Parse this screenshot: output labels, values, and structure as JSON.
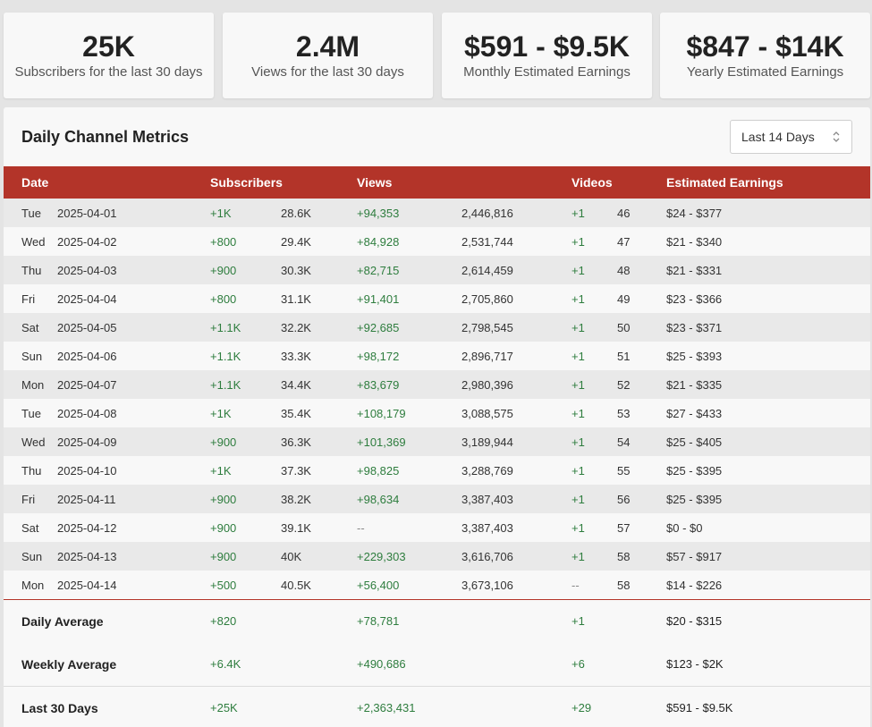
{
  "stats": [
    {
      "value": "25K",
      "label": "Subscribers for the last 30 days"
    },
    {
      "value": "2.4M",
      "label": "Views for the last 30 days"
    },
    {
      "value": "$591 - $9.5K",
      "label": "Monthly Estimated Earnings"
    },
    {
      "value": "$847 - $14K",
      "label": "Yearly Estimated Earnings"
    }
  ],
  "panel": {
    "title": "Daily Channel Metrics",
    "range_select": {
      "value": "Last 14 Days",
      "icon": "chevron-updown-icon"
    }
  },
  "table": {
    "headers": {
      "date": "Date",
      "subscribers": "Subscribers",
      "views": "Views",
      "videos": "Videos",
      "earnings": "Estimated Earnings"
    },
    "rows": [
      {
        "day": "Tue",
        "date": "2025-04-01",
        "sub_delta": "+1K",
        "sub_total": "28.6K",
        "views_delta": "+94,353",
        "views_total": "2,446,816",
        "videos_delta": "+1",
        "videos_total": "46",
        "earnings": "$24 - $377"
      },
      {
        "day": "Wed",
        "date": "2025-04-02",
        "sub_delta": "+800",
        "sub_total": "29.4K",
        "views_delta": "+84,928",
        "views_total": "2,531,744",
        "videos_delta": "+1",
        "videos_total": "47",
        "earnings": "$21 - $340"
      },
      {
        "day": "Thu",
        "date": "2025-04-03",
        "sub_delta": "+900",
        "sub_total": "30.3K",
        "views_delta": "+82,715",
        "views_total": "2,614,459",
        "videos_delta": "+1",
        "videos_total": "48",
        "earnings": "$21 - $331"
      },
      {
        "day": "Fri",
        "date": "2025-04-04",
        "sub_delta": "+800",
        "sub_total": "31.1K",
        "views_delta": "+91,401",
        "views_total": "2,705,860",
        "videos_delta": "+1",
        "videos_total": "49",
        "earnings": "$23 - $366"
      },
      {
        "day": "Sat",
        "date": "2025-04-05",
        "sub_delta": "+1.1K",
        "sub_total": "32.2K",
        "views_delta": "+92,685",
        "views_total": "2,798,545",
        "videos_delta": "+1",
        "videos_total": "50",
        "earnings": "$23 - $371"
      },
      {
        "day": "Sun",
        "date": "2025-04-06",
        "sub_delta": "+1.1K",
        "sub_total": "33.3K",
        "views_delta": "+98,172",
        "views_total": "2,896,717",
        "videos_delta": "+1",
        "videos_total": "51",
        "earnings": "$25 - $393"
      },
      {
        "day": "Mon",
        "date": "2025-04-07",
        "sub_delta": "+1.1K",
        "sub_total": "34.4K",
        "views_delta": "+83,679",
        "views_total": "2,980,396",
        "videos_delta": "+1",
        "videos_total": "52",
        "earnings": "$21 - $335"
      },
      {
        "day": "Tue",
        "date": "2025-04-08",
        "sub_delta": "+1K",
        "sub_total": "35.4K",
        "views_delta": "+108,179",
        "views_total": "3,088,575",
        "videos_delta": "+1",
        "videos_total": "53",
        "earnings": "$27 - $433"
      },
      {
        "day": "Wed",
        "date": "2025-04-09",
        "sub_delta": "+900",
        "sub_total": "36.3K",
        "views_delta": "+101,369",
        "views_total": "3,189,944",
        "videos_delta": "+1",
        "videos_total": "54",
        "earnings": "$25 - $405"
      },
      {
        "day": "Thu",
        "date": "2025-04-10",
        "sub_delta": "+1K",
        "sub_total": "37.3K",
        "views_delta": "+98,825",
        "views_total": "3,288,769",
        "videos_delta": "+1",
        "videos_total": "55",
        "earnings": "$25 - $395"
      },
      {
        "day": "Fri",
        "date": "2025-04-11",
        "sub_delta": "+900",
        "sub_total": "38.2K",
        "views_delta": "+98,634",
        "views_total": "3,387,403",
        "videos_delta": "+1",
        "videos_total": "56",
        "earnings": "$25 - $395"
      },
      {
        "day": "Sat",
        "date": "2025-04-12",
        "sub_delta": "+900",
        "sub_total": "39.1K",
        "views_delta": "--",
        "views_total": "3,387,403",
        "videos_delta": "+1",
        "videos_total": "57",
        "earnings": "$0 - $0"
      },
      {
        "day": "Sun",
        "date": "2025-04-13",
        "sub_delta": "+900",
        "sub_total": "40K",
        "views_delta": "+229,303",
        "views_total": "3,616,706",
        "videos_delta": "+1",
        "videos_total": "58",
        "earnings": "$57 - $917"
      },
      {
        "day": "Mon",
        "date": "2025-04-14",
        "sub_delta": "+500",
        "sub_total": "40.5K",
        "views_delta": "+56,400",
        "views_total": "3,673,106",
        "videos_delta": "--",
        "videos_total": "58",
        "earnings": "$14 - $226"
      }
    ],
    "summary": [
      {
        "label": "Daily Average",
        "subscribers": "+820",
        "views": "+78,781",
        "videos": "+1",
        "earnings": "$20 - $315"
      },
      {
        "label": "Weekly Average",
        "subscribers": "+6.4K",
        "views": "+490,686",
        "videos": "+6",
        "earnings": "$123 - $2K"
      },
      {
        "label": "Last 30 Days",
        "subscribers": "+25K",
        "views": "+2,363,431",
        "videos": "+29",
        "earnings": "$591 - $9.5K"
      }
    ]
  },
  "colors": {
    "header_bg": "#b33429",
    "positive": "#2e7d3e",
    "row_stripe": "#e9e9e9",
    "page_bg": "#e4e4e4"
  }
}
